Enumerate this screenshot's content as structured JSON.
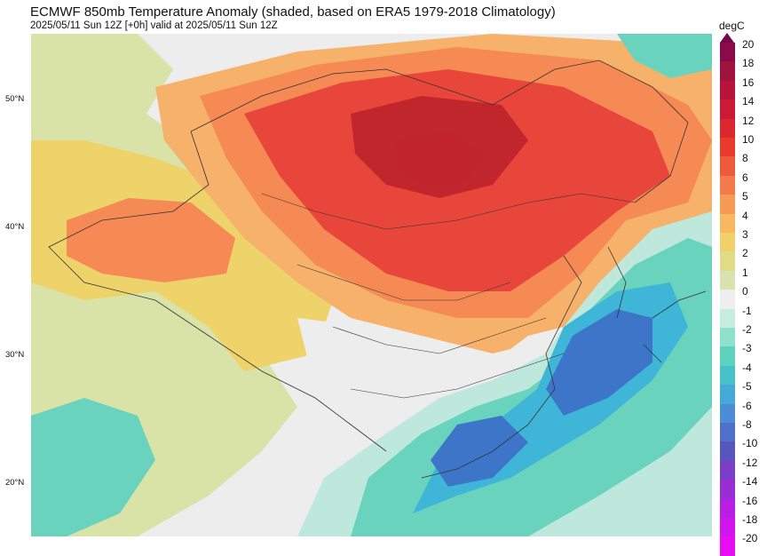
{
  "header": {
    "title": "ECMWF 850mb Temperature Anomaly (shaded, based on ERA5 1979-2018 Climatology)",
    "subtitle": "2025/05/11 Sun 12Z [+0h] valid at 2025/05/11 Sun 12Z"
  },
  "map": {
    "lat_labels": [
      "50°N",
      "40°N",
      "30°N",
      "20°N"
    ],
    "regions": {
      "warm_core": "#c0262c",
      "warm": "#e8463a",
      "orange": "#f58a55",
      "light_orange": "#f6b26b",
      "yellow": "#eed26a",
      "pale_green": "#d9e3a8",
      "neutral": "#ededed",
      "light_teal": "#bfe8dc",
      "teal": "#69d3bd",
      "cyan": "#3fb6d8",
      "blue": "#3d76c8"
    }
  },
  "colorbar": {
    "unit": "degC",
    "levels": [
      "20",
      "18",
      "16",
      "14",
      "12",
      "10",
      "8",
      "6",
      "5",
      "4",
      "3",
      "2",
      "1",
      "0",
      "-1",
      "-2",
      "-3",
      "-4",
      "-5",
      "-6",
      "-8",
      "-10",
      "-12",
      "-14",
      "-16",
      "-18",
      "-20"
    ],
    "colors": [
      "#8a0a4a",
      "#a2123e",
      "#b8143a",
      "#cc1a34",
      "#dd262d",
      "#ea3a2b",
      "#f05a3c",
      "#f57a4a",
      "#f79a55",
      "#f8b862",
      "#f2d16b",
      "#e1dd86",
      "#d8e3b0",
      "#eeeeee",
      "#c7ece0",
      "#8fe1cc",
      "#5fd2bf",
      "#47c2c9",
      "#46a9d8",
      "#4b8ed6",
      "#4f71c9",
      "#5756bd",
      "#7a3fc6",
      "#9a2ed6",
      "#b81ee3",
      "#d215ee",
      "#e80cf5"
    ],
    "top_arrow_color": "#75084a"
  }
}
